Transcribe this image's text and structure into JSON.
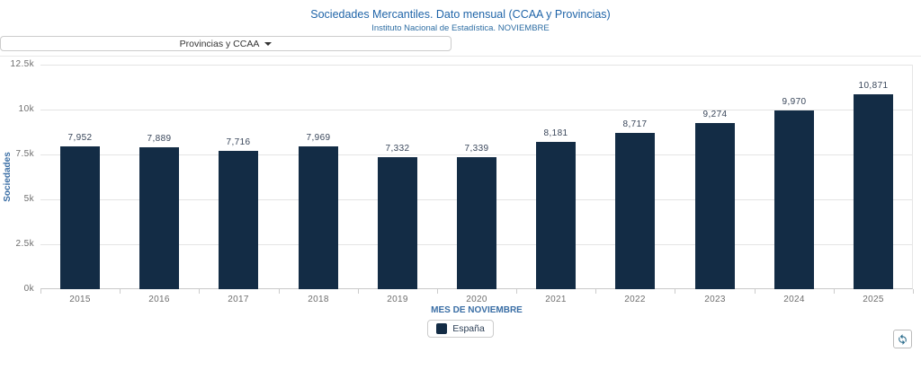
{
  "header": {
    "title": "Sociedades Mercantiles. Dato mensual (CCAA y Provincias)",
    "subtitle": "Instituto Nacional de Estadística. NOVIEMBRE"
  },
  "dropdown": {
    "label": "Provincias y CCAA"
  },
  "chart_data": {
    "type": "bar",
    "title": "Sociedades Mercantiles. Dato mensual (CCAA y Provincias)",
    "subtitle": "Instituto Nacional de Estadística. NOVIEMBRE",
    "categories": [
      "2015",
      "2016",
      "2017",
      "2018",
      "2019",
      "2020",
      "2021",
      "2022",
      "2023",
      "2024",
      "2025"
    ],
    "series": [
      {
        "name": "España",
        "values": [
          7952,
          7889,
          7716,
          7969,
          7332,
          7339,
          8181,
          8717,
          9274,
          9970,
          10871
        ]
      }
    ],
    "value_labels": [
      "7,952",
      "7,889",
      "7,716",
      "7,969",
      "7,332",
      "7,339",
      "8,181",
      "8,717",
      "9,274",
      "9,970",
      "10,871"
    ],
    "xlabel": "MES DE NOVIEMBRE",
    "ylabel": "Sociedades",
    "ylim": [
      0,
      12500
    ],
    "ytick_values": [
      12500,
      10000,
      7500,
      5000,
      2500,
      0
    ],
    "ytick_labels": [
      "12.5k",
      "10k",
      "7.5k",
      "5k",
      "2.5k",
      "0k"
    ],
    "grid": true,
    "legend_position": "bottom",
    "bar_color": "#132c45"
  },
  "legend": {
    "items": [
      {
        "label": "España",
        "color": "#132c45"
      }
    ]
  },
  "toolbar": {
    "refresh": "refresh-icon"
  },
  "colors": {
    "title_blue": "#1f64a8",
    "axis_title_blue": "#3a6ea5",
    "bar_fill": "#132c45",
    "gridline": "#e4e4e4",
    "tick_text": "#6e6e6e",
    "refresh_icon_blue": "#31708f"
  }
}
